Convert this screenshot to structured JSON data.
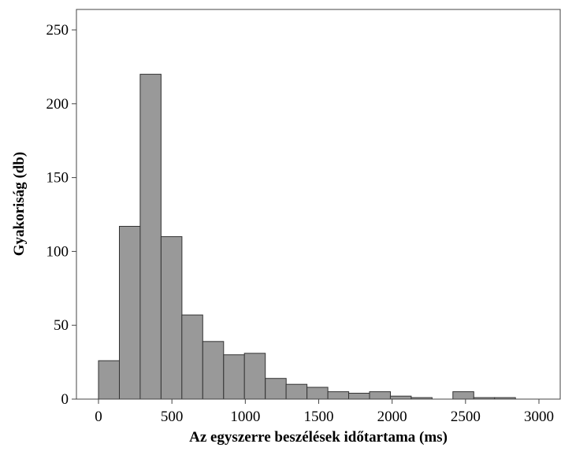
{
  "chart_data": {
    "type": "bar",
    "subtype": "histogram",
    "xlabel": "Az egyszerre beszélések időtartama (ms)",
    "ylabel": "Gyakoriság (db)",
    "xlim": [
      -50,
      3100
    ],
    "ylim": [
      0,
      262
    ],
    "xticks": [
      0,
      500,
      1000,
      1500,
      2000,
      2500,
      3000
    ],
    "yticks": [
      0,
      50,
      100,
      150,
      200,
      250
    ],
    "bin_width": 142,
    "bins": [
      {
        "start": 0,
        "value": 26
      },
      {
        "start": 142,
        "value": 117
      },
      {
        "start": 284,
        "value": 220
      },
      {
        "start": 426,
        "value": 110
      },
      {
        "start": 568,
        "value": 57
      },
      {
        "start": 710,
        "value": 39
      },
      {
        "start": 852,
        "value": 30
      },
      {
        "start": 994,
        "value": 31
      },
      {
        "start": 1136,
        "value": 14
      },
      {
        "start": 1278,
        "value": 10
      },
      {
        "start": 1420,
        "value": 8
      },
      {
        "start": 1562,
        "value": 5
      },
      {
        "start": 1704,
        "value": 4
      },
      {
        "start": 1846,
        "value": 5
      },
      {
        "start": 1988,
        "value": 2
      },
      {
        "start": 2130,
        "value": 1
      },
      {
        "start": 2272,
        "value": 0
      },
      {
        "start": 2414,
        "value": 5
      },
      {
        "start": 2556,
        "value": 1
      },
      {
        "start": 2698,
        "value": 1
      }
    ],
    "bar_color": "#999999",
    "bar_edge_color": "#333333",
    "grid": false,
    "legend": "none"
  }
}
